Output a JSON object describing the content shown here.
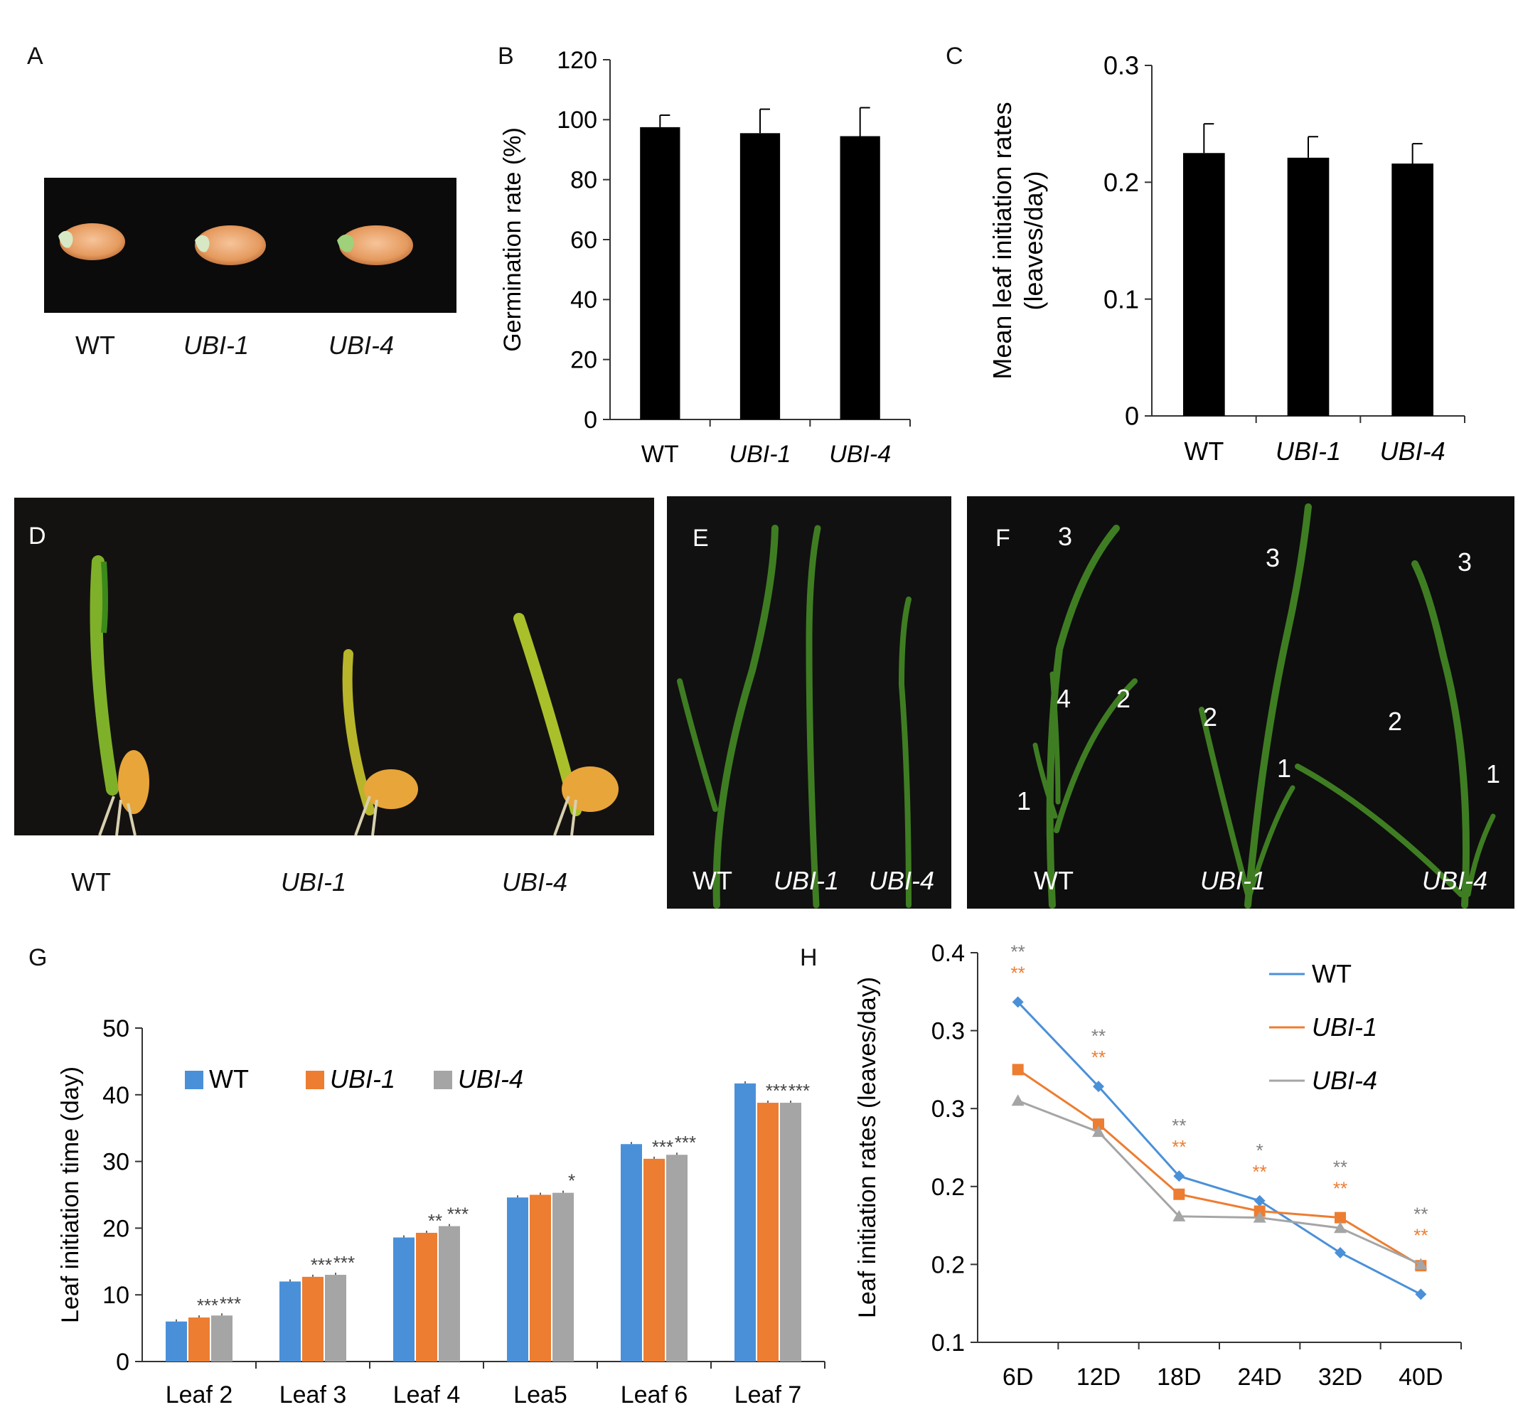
{
  "panels": {
    "A": {
      "letter": "A",
      "labels": [
        "WT",
        "UBI-1",
        "UBI-4"
      ]
    },
    "B": {
      "letter": "B"
    },
    "C": {
      "letter": "C"
    },
    "D": {
      "letter": "D",
      "labels": [
        "WT",
        "UBI-1",
        "UBI-4"
      ]
    },
    "E": {
      "letter": "E",
      "labels": [
        "WT",
        "UBI-1",
        "UBI-4"
      ]
    },
    "F": {
      "letter": "F",
      "labels": [
        "WT",
        "UBI-1",
        "UBI-4"
      ]
    },
    "G": {
      "letter": "G"
    },
    "H": {
      "letter": "H"
    }
  },
  "colors": {
    "wt": "#4a90d9",
    "ubi1": "#ed7d31",
    "ubi4": "#a5a5a5",
    "black": "#000000"
  },
  "chart_data": [
    {
      "id": "B",
      "type": "bar",
      "categories": [
        "WT",
        "UBI-1",
        "UBI-4"
      ],
      "values": [
        97.5,
        95.5,
        94.5
      ],
      "errors": [
        4,
        8,
        9.5
      ],
      "ylabel": "Germination rate (%)",
      "ylim": [
        0,
        120
      ],
      "yticks": [
        "0",
        "20",
        "40",
        "60",
        "80",
        "100",
        "120"
      ]
    },
    {
      "id": "C",
      "type": "bar",
      "categories": [
        "WT",
        "UBI-1",
        "UBI-4"
      ],
      "values": [
        0.225,
        0.221,
        0.216
      ],
      "errors": [
        0.025,
        0.018,
        0.017
      ],
      "ylabel": "Mean leaf initiation rates (leaves/day)",
      "ylim": [
        0,
        0.3
      ],
      "yticks": [
        "0",
        "0.1",
        "0.2",
        "0.3"
      ]
    },
    {
      "id": "G",
      "type": "bar",
      "categories": [
        "Leaf 2",
        "Leaf 3",
        "Leaf 4",
        "Lea5",
        "Leaf 6",
        "Leaf 7"
      ],
      "series": [
        {
          "name": "WT",
          "values": [
            6.0,
            12.0,
            18.6,
            24.6,
            32.6,
            41.7
          ]
        },
        {
          "name": "UBI-1",
          "values": [
            6.6,
            12.7,
            19.3,
            25.0,
            30.4,
            38.8
          ]
        },
        {
          "name": "UBI-4",
          "values": [
            6.9,
            13.0,
            20.3,
            25.3,
            31.0,
            38.8
          ]
        }
      ],
      "annotations": [
        [
          "",
          "***",
          "***"
        ],
        [
          "",
          "***",
          "***"
        ],
        [
          "",
          "**",
          "***"
        ],
        [
          "",
          "",
          "*"
        ],
        [
          "",
          "***",
          "***"
        ],
        [
          "",
          "***",
          "***"
        ]
      ],
      "ylabel": "Leaf initiation time (day)",
      "ylim": [
        0,
        50
      ],
      "yticks": [
        "0",
        "10",
        "20",
        "30",
        "40",
        "50"
      ],
      "legend": "top-left"
    },
    {
      "id": "H",
      "type": "line",
      "x": [
        "6D",
        "12D",
        "18D",
        "24D",
        "32D",
        "40D"
      ],
      "series": [
        {
          "name": "WT",
          "values": [
            0.362,
            0.297,
            0.228,
            0.209,
            0.169,
            0.137
          ]
        },
        {
          "name": "UBI-1",
          "values": [
            0.31,
            0.268,
            0.214,
            0.201,
            0.196,
            0.159
          ]
        },
        {
          "name": "UBI-4",
          "values": [
            0.286,
            0.262,
            0.197,
            0.196,
            0.188,
            0.16
          ]
        }
      ],
      "annotations": [
        {
          "gray": "**",
          "orange": "**"
        },
        {
          "gray": "**",
          "orange": "**"
        },
        {
          "gray": "**",
          "orange": "**"
        },
        {
          "gray": "*",
          "orange": "**"
        },
        {
          "gray": "**",
          "orange": "**"
        },
        {
          "gray": "**",
          "orange": "**"
        }
      ],
      "ylabel": "Leaf initiation rates (leaves/day)",
      "ylim": [
        0.1,
        0.4
      ],
      "yticks": [
        "0.1",
        "0.2",
        "0.2",
        "0.3",
        "0.3",
        "0.4"
      ],
      "legend": "top-right"
    }
  ],
  "photo_numbers": {
    "F": {
      "wt": [
        "3",
        "4",
        "2",
        "1"
      ],
      "ubi1": [
        "3",
        "2",
        "1"
      ],
      "ubi4": [
        "3",
        "2",
        "1"
      ]
    }
  }
}
